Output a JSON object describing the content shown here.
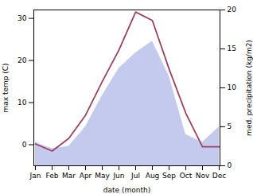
{
  "chart_data": {
    "type": "line",
    "xlabel": "date (month)",
    "ylabel": "max temp (C)",
    "y2label": "med. precipitation (kg/m2)",
    "categories": [
      "Jan",
      "Feb",
      "Mar",
      "Apr",
      "May",
      "Jun",
      "Jul",
      "Aug",
      "Sep",
      "Oct",
      "Nov",
      "Dec"
    ],
    "series": [
      {
        "type": "area",
        "axis": "y2",
        "color": "#b0b8e8",
        "values": [
          3.0,
          2.2,
          2.5,
          5.0,
          9.0,
          12.5,
          14.5,
          16.0,
          11.5,
          4.0,
          3.0,
          5.0
        ]
      },
      {
        "type": "line",
        "color": "#9b4060",
        "values": [
          0.2,
          -1.5,
          1.5,
          7.0,
          15.0,
          22.5,
          31.5,
          29.5,
          18.0,
          7.5,
          -0.5,
          -0.5
        ]
      }
    ],
    "ylim": [
      -5,
      32
    ],
    "yticks": [
      0,
      10,
      20,
      30
    ],
    "y2lim": [
      0,
      20
    ],
    "y2ticks": [
      0,
      5,
      10,
      15,
      20
    ]
  }
}
